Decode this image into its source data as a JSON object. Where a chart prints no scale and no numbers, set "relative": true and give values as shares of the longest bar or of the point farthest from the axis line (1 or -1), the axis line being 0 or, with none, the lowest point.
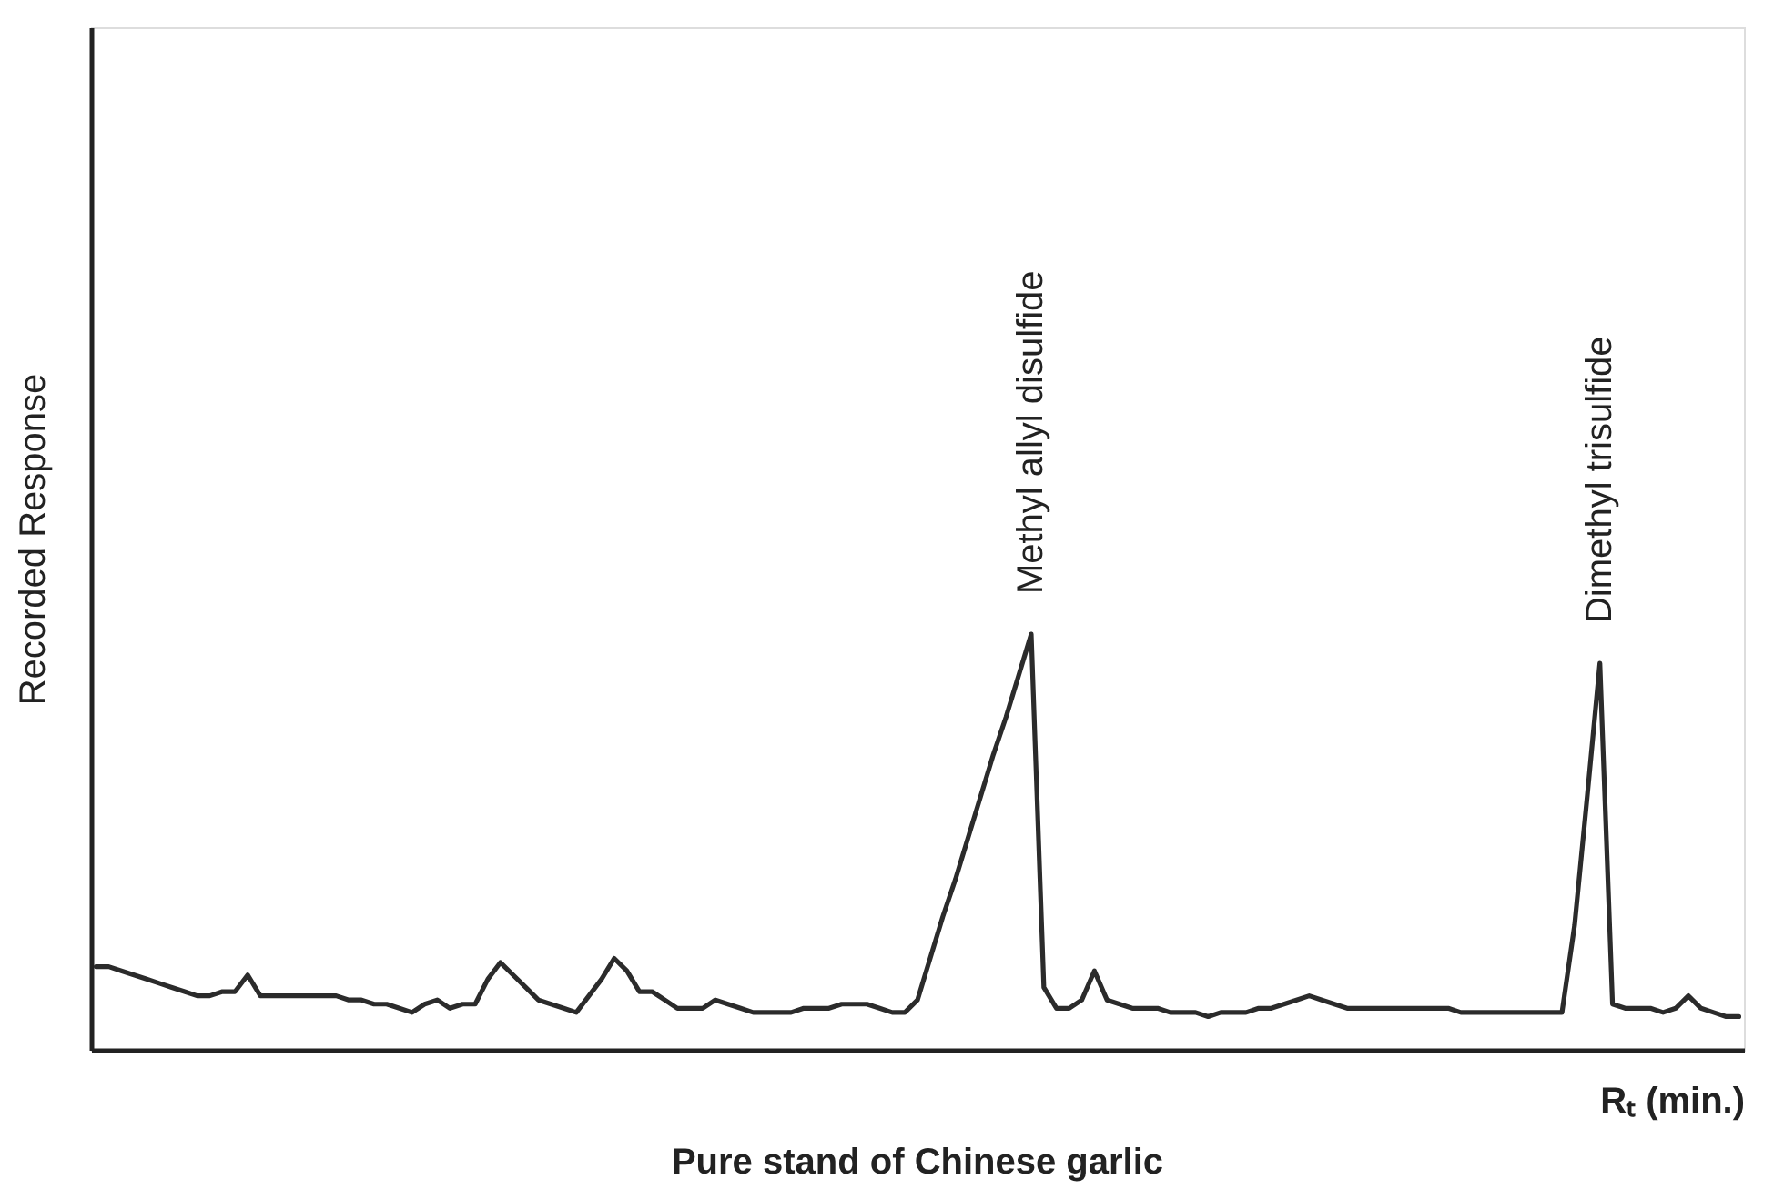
{
  "chart_data": {
    "type": "line",
    "relative": true,
    "title": "Pure stand of Chinese garlic",
    "xlabel": "Rₜ (min.)",
    "ylabel": "Recorded Response",
    "categories": [
      null,
      null,
      null,
      null,
      null,
      null,
      null,
      null,
      null,
      null,
      null,
      null,
      null,
      null,
      null,
      null,
      null,
      null,
      null,
      null,
      null,
      null,
      null,
      null,
      null,
      null,
      null,
      null,
      null,
      null,
      null,
      null,
      null,
      null,
      null,
      null,
      null,
      null,
      null,
      null,
      null,
      null,
      null,
      null,
      null,
      null,
      null,
      null,
      null,
      null,
      null,
      null,
      null,
      null,
      null,
      null,
      null,
      null,
      null,
      null,
      null,
      null,
      null,
      null,
      null,
      null,
      null,
      null,
      null,
      null,
      null,
      null,
      null,
      null,
      null,
      null,
      null,
      null,
      null,
      null,
      null,
      null,
      null,
      null,
      null,
      null,
      null,
      null,
      null,
      null,
      null,
      null,
      null,
      null,
      null,
      null,
      null,
      null,
      null,
      null,
      null,
      null,
      null,
      null,
      null,
      null,
      null,
      null,
      null,
      null,
      null,
      null,
      null,
      null,
      null,
      null,
      null,
      null,
      null,
      null,
      null,
      null,
      null,
      null,
      null,
      null,
      null,
      null,
      null,
      null,
      null
    ],
    "series": [
      {
        "color": "#2b2b2b",
        "values": [
          0.2,
          0.2,
          0.19,
          0.18,
          0.17,
          0.16,
          0.15,
          0.14,
          0.13,
          0.13,
          0.14,
          0.14,
          0.18,
          0.13,
          0.13,
          0.13,
          0.13,
          0.13,
          0.13,
          0.13,
          0.12,
          0.12,
          0.11,
          0.11,
          0.1,
          0.09,
          0.11,
          0.12,
          0.1,
          0.11,
          0.11,
          0.17,
          0.21,
          0.18,
          0.15,
          0.12,
          0.11,
          0.1,
          0.09,
          0.13,
          0.17,
          0.22,
          0.19,
          0.14,
          0.14,
          0.12,
          0.1,
          0.1,
          0.1,
          0.12,
          0.11,
          0.1,
          0.09,
          0.09,
          0.09,
          0.09,
          0.1,
          0.1,
          0.1,
          0.11,
          0.11,
          0.11,
          0.1,
          0.09,
          0.09,
          0.12,
          0.22,
          0.32,
          0.41,
          0.51,
          0.61,
          0.71,
          0.8,
          0.9,
          1,
          0.15,
          0.1,
          0.1,
          0.12,
          0.19,
          0.12,
          0.11,
          0.1,
          0.1,
          0.1,
          0.09,
          0.09,
          0.09,
          0.08,
          0.09,
          0.09,
          0.09,
          0.1,
          0.1,
          0.11,
          0.12,
          0.13,
          0.12,
          0.11,
          0.1,
          0.1,
          0.1,
          0.1,
          0.1,
          0.1,
          0.1,
          0.1,
          0.1,
          0.09,
          0.09,
          0.09,
          0.09,
          0.09,
          0.09,
          0.09,
          0.09,
          0.09,
          0.3,
          0.61,
          0.93,
          0.11,
          0.1,
          0.1,
          0.1,
          0.09,
          0.1,
          0.13,
          0.1,
          0.09,
          0.08,
          0.08
        ]
      }
    ],
    "annotations": [
      {
        "text": "Methyl allyl disulfide",
        "y": 1
      },
      {
        "text": "Dimethyl trisulfide",
        "y": 0.93
      }
    ]
  }
}
